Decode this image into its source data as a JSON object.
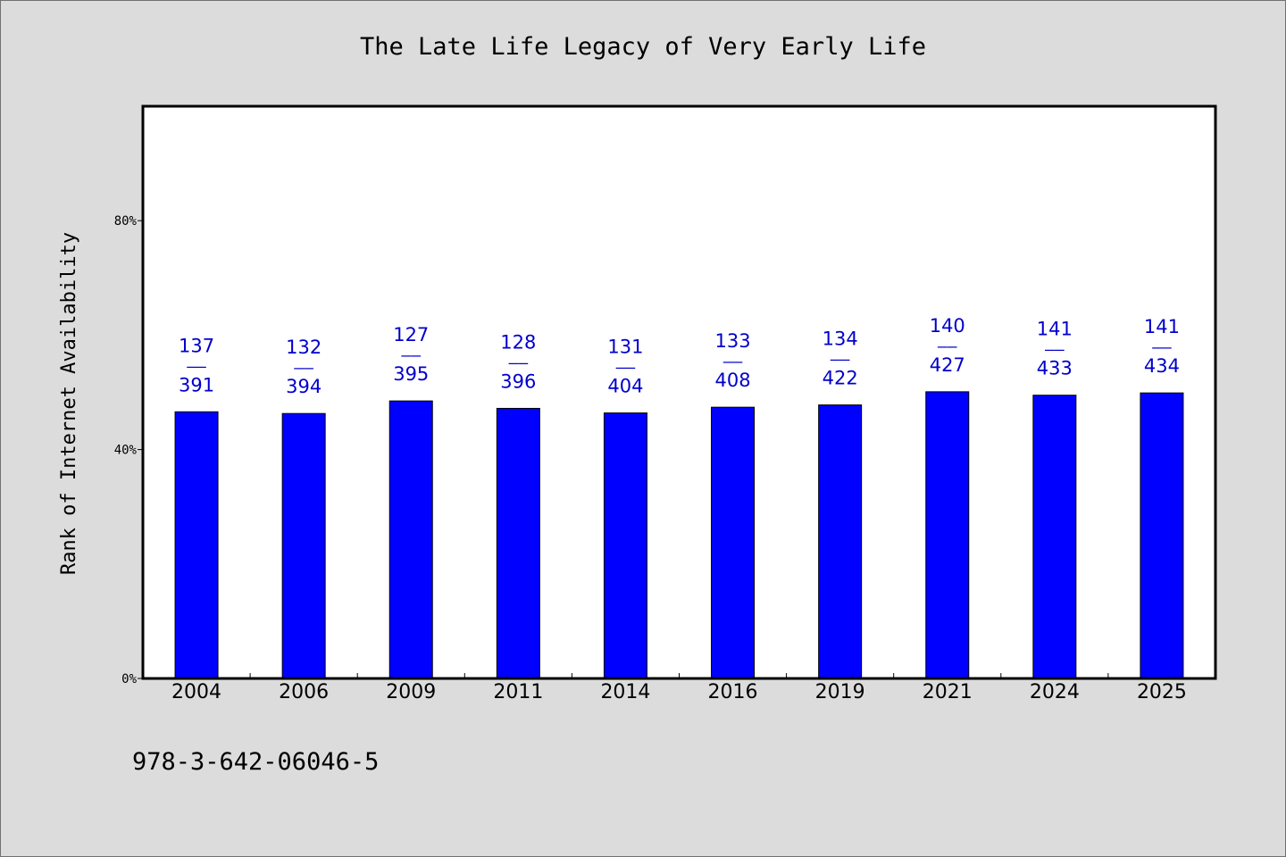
{
  "chart_data": {
    "type": "bar",
    "title": "The Late Life Legacy of Very Early Life",
    "ylabel": "Rank of Internet Availability",
    "xlabel": "",
    "categories": [
      "2004",
      "2006",
      "2009",
      "2011",
      "2014",
      "2016",
      "2019",
      "2021",
      "2024",
      "2025"
    ],
    "series": [
      {
        "values": [
          46.6,
          46.3,
          48.5,
          47.2,
          46.4,
          47.4,
          47.8,
          50.1,
          49.5,
          49.9
        ],
        "data_labels": [
          {
            "top": "137",
            "sep": "——",
            "bottom": "391"
          },
          {
            "top": "132",
            "sep": "——",
            "bottom": "394"
          },
          {
            "top": "127",
            "sep": "——",
            "bottom": "395"
          },
          {
            "top": "128",
            "sep": "——",
            "bottom": "396"
          },
          {
            "top": "131",
            "sep": "——",
            "bottom": "404"
          },
          {
            "top": "133",
            "sep": "——",
            "bottom": "408"
          },
          {
            "top": "134",
            "sep": "——",
            "bottom": "422"
          },
          {
            "top": "140",
            "sep": "——",
            "bottom": "427"
          },
          {
            "top": "141",
            "sep": "——",
            "bottom": "433"
          },
          {
            "top": "141",
            "sep": "——",
            "bottom": "434"
          }
        ]
      }
    ],
    "ylim": [
      0,
      100
    ],
    "yticks": [
      {
        "value": 0,
        "label": "0%"
      },
      {
        "value": 40,
        "label": "40%"
      },
      {
        "value": 80,
        "label": "80%"
      }
    ],
    "grid": false,
    "legend": "none"
  },
  "footnote": "978-3-642-06046-5",
  "colors": {
    "bar": "#0000ff",
    "label": "#0000cc",
    "background": "#dcdcdc",
    "plot": "#ffffff",
    "text": "#000000"
  }
}
